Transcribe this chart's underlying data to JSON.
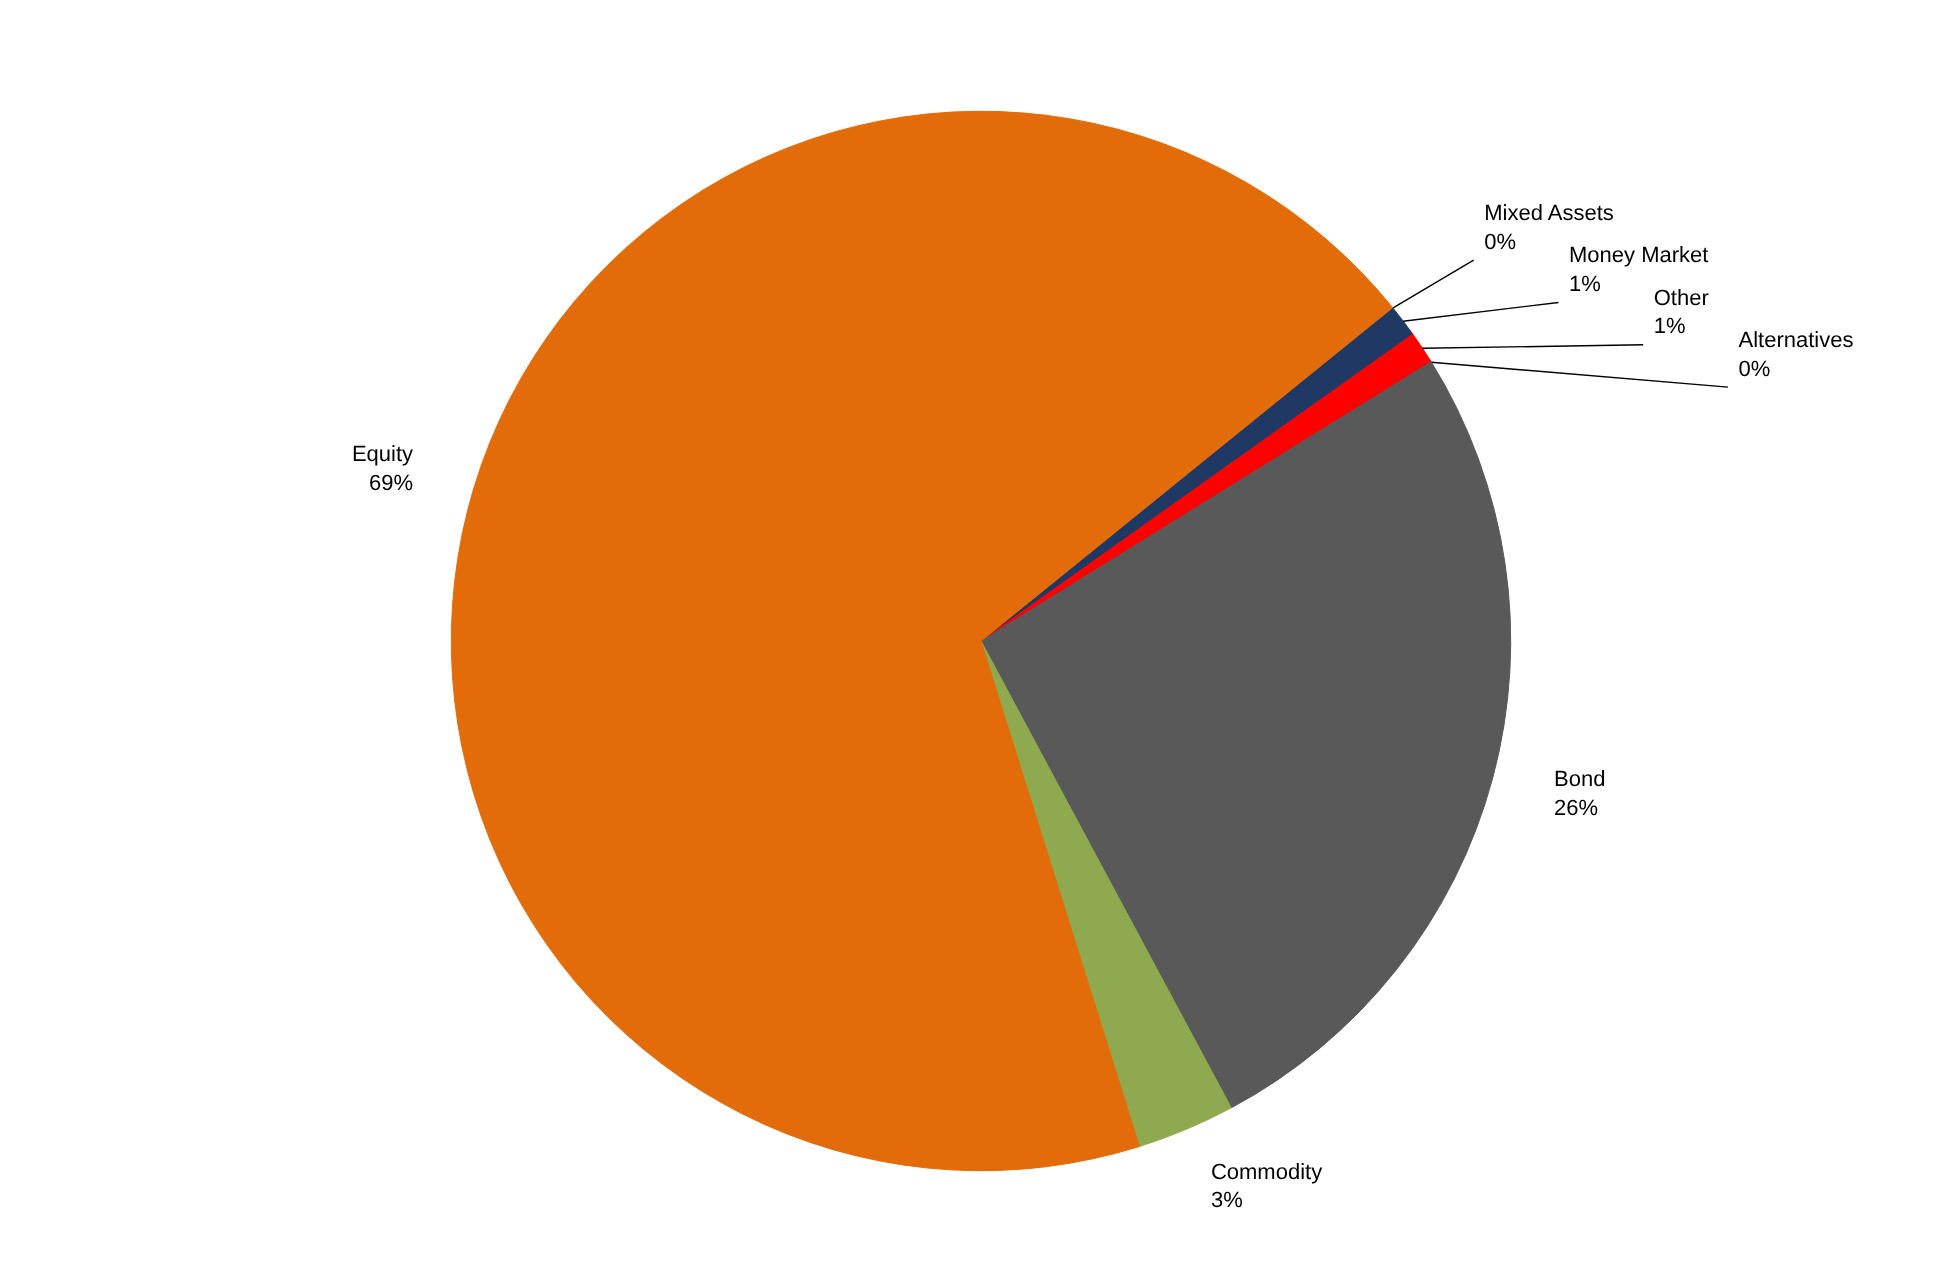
{
  "chart_data": {
    "type": "pie",
    "categories": [
      "Mixed Assets",
      "Money Market",
      "Other",
      "Alternatives",
      "Bond",
      "Commodity",
      "Equity"
    ],
    "values": [
      0,
      1,
      1,
      0,
      26,
      3,
      69
    ],
    "value_labels": [
      "0%",
      "1%",
      "1%",
      "0%",
      "26%",
      "3%",
      "69%"
    ],
    "colors": [
      "#4f6228",
      "#1f3864",
      "#ff0000",
      "#8064a2",
      "#595959",
      "#8ea94e",
      "#e36c0a"
    ]
  }
}
